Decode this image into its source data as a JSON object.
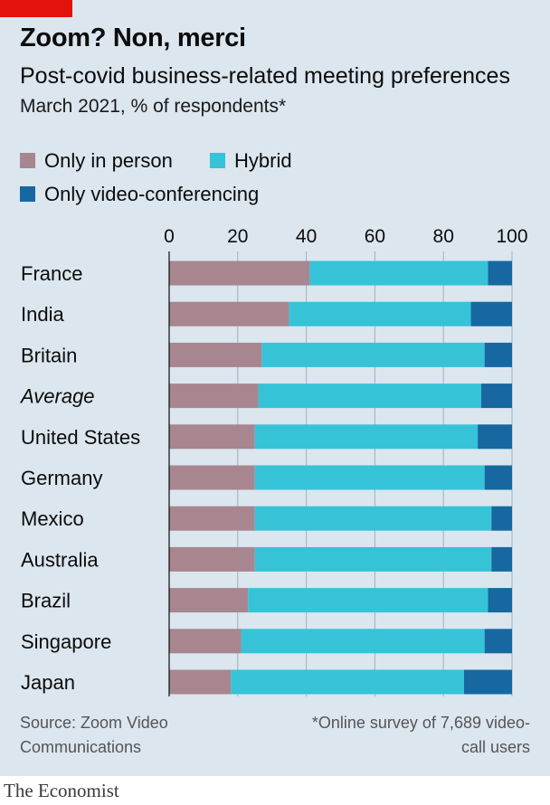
{
  "header": {
    "title": "Zoom? Non, merci",
    "subtitle": "Post-covid business-related meeting preferences",
    "unit": "March 2021, % of respondents*"
  },
  "legend": [
    {
      "label": "Only in person",
      "color": "#a8868f"
    },
    {
      "label": "Hybrid",
      "color": "#36c3d8"
    },
    {
      "label": "Only video-conferencing",
      "color": "#1768a0"
    }
  ],
  "footer": {
    "source": "Source: Zoom Video Communications",
    "footnote": "*Online survey of 7,689 video-call users",
    "brand": "The Economist"
  },
  "colors": {
    "accent": "#e3120b",
    "background": "#dbe6ee"
  },
  "chart_data": {
    "type": "bar",
    "orientation": "horizontal",
    "stacked": true,
    "title": "Zoom? Non, merci",
    "subtitle": "Post-covid business-related meeting preferences",
    "xlim": [
      0,
      100
    ],
    "x_ticks": [
      "0",
      "20",
      "40",
      "60",
      "80",
      "100"
    ],
    "grid": true,
    "legend_position": "top-left",
    "categories": [
      "France",
      "India",
      "Britain",
      "Average",
      "United States",
      "Germany",
      "Mexico",
      "Australia",
      "Brazil",
      "Singapore",
      "Japan"
    ],
    "italic_categories": [
      "Average"
    ],
    "series": [
      {
        "name": "Only in person",
        "color": "#a8868f",
        "values": [
          41,
          35,
          27,
          26,
          25,
          25,
          25,
          25,
          23,
          21,
          18
        ]
      },
      {
        "name": "Hybrid",
        "color": "#36c3d8",
        "values": [
          52,
          53,
          65,
          65,
          65,
          67,
          69,
          69,
          70,
          71,
          68
        ]
      },
      {
        "name": "Only video-conferencing",
        "color": "#1768a0",
        "values": [
          7,
          12,
          8,
          9,
          10,
          8,
          6,
          6,
          7,
          8,
          14
        ]
      }
    ]
  }
}
